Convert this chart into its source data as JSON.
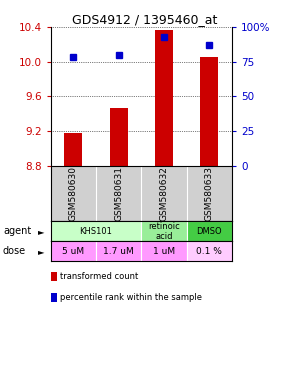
{
  "title": "GDS4912 / 1395460_at",
  "samples": [
    "GSM580630",
    "GSM580631",
    "GSM580632",
    "GSM580633"
  ],
  "red_values": [
    9.18,
    9.47,
    10.36,
    10.05
  ],
  "blue_values": [
    78,
    80,
    93,
    87
  ],
  "ylim_left": [
    8.8,
    10.4
  ],
  "ylim_right": [
    0,
    100
  ],
  "yticks_left": [
    8.8,
    9.2,
    9.6,
    10.0,
    10.4
  ],
  "yticks_right": [
    0,
    25,
    50,
    75,
    100
  ],
  "ytick_labels_right": [
    "0",
    "25",
    "50",
    "75",
    "100%"
  ],
  "dose_labels": [
    "5 uM",
    "1.7 uM",
    "1 uM",
    "0.1 %"
  ],
  "dose_color": "#ff99ff",
  "dose_last_color": "#ffccff",
  "sample_bg_color": "#d0d0d0",
  "bar_color": "#cc0000",
  "dot_color": "#0000cc",
  "legend_red": "transformed count",
  "legend_blue": "percentile rank within the sample",
  "base_value": 8.8,
  "agent_defs": [
    {
      "start": 0,
      "end": 2,
      "text": "KHS101",
      "color": "#c8ffc8"
    },
    {
      "start": 2,
      "end": 3,
      "text": "retinoic\nacid",
      "color": "#99ee99"
    },
    {
      "start": 3,
      "end": 4,
      "text": "DMSO",
      "color": "#44cc44"
    }
  ]
}
